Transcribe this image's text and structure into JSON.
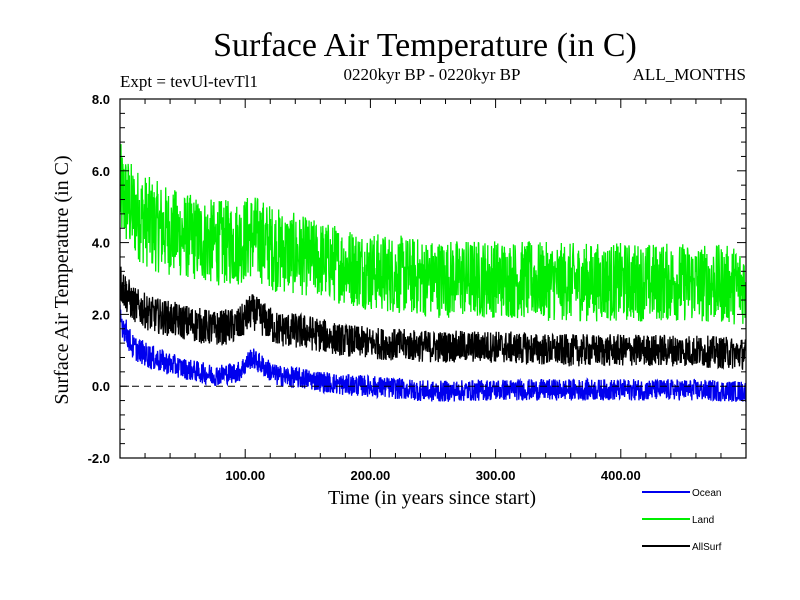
{
  "chart_data": {
    "type": "line",
    "title": "Surface Air Temperature (in C)",
    "expt_label": "Expt = tevUl-tevTl1",
    "period_label": "0220kyr BP - 0220kyr BP",
    "months_label": "ALL_MONTHS",
    "xlabel": "Time (in years since start)",
    "ylabel": "Surface Air Temperature (in C)",
    "xlim": [
      0,
      500
    ],
    "ylim": [
      -2.0,
      8.0
    ],
    "x_ticks": [
      {
        "value": 100,
        "label": "100.00"
      },
      {
        "value": 200,
        "label": "200.00"
      },
      {
        "value": 300,
        "label": "300.00"
      },
      {
        "value": 400,
        "label": "400.00"
      }
    ],
    "y_ticks": [
      {
        "value": -2.0,
        "label": "-2.0"
      },
      {
        "value": 0.0,
        "label": "0.0"
      },
      {
        "value": 2.0,
        "label": "2.0"
      },
      {
        "value": 4.0,
        "label": "4.0"
      },
      {
        "value": 6.0,
        "label": "6.0"
      },
      {
        "value": 8.0,
        "label": "8.0"
      }
    ],
    "reference_line": {
      "y": 0.0,
      "style": "dashed"
    },
    "x": [
      0,
      10,
      25,
      50,
      75,
      95,
      105,
      125,
      150,
      175,
      200,
      250,
      300,
      350,
      400,
      450,
      500
    ],
    "series": [
      {
        "name": "Land",
        "color": "#00ee00",
        "values": [
          5.4,
          4.9,
          4.5,
          4.2,
          4.0,
          4.0,
          4.2,
          3.8,
          3.6,
          3.4,
          3.2,
          3.0,
          3.0,
          2.9,
          2.9,
          2.9,
          2.8
        ],
        "spread": [
          1.4,
          1.3,
          1.3,
          1.2,
          1.2,
          1.2,
          1.2,
          1.2,
          1.1,
          1.1,
          1.1,
          1.1,
          1.1,
          1.1,
          1.1,
          1.1,
          1.1
        ]
      },
      {
        "name": "AllSurf",
        "color": "#000000",
        "values": [
          2.9,
          2.3,
          2.0,
          1.8,
          1.6,
          1.7,
          2.1,
          1.6,
          1.5,
          1.3,
          1.2,
          1.1,
          1.1,
          1.0,
          1.0,
          1.0,
          0.9
        ],
        "spread": [
          0.6,
          0.5,
          0.5,
          0.5,
          0.5,
          0.5,
          0.5,
          0.5,
          0.5,
          0.45,
          0.45,
          0.45,
          0.45,
          0.45,
          0.45,
          0.45,
          0.45
        ]
      },
      {
        "name": "Ocean",
        "color": "#0000ee",
        "values": [
          1.9,
          1.1,
          0.8,
          0.5,
          0.3,
          0.4,
          0.8,
          0.3,
          0.2,
          0.05,
          0.0,
          -0.15,
          -0.1,
          -0.1,
          -0.1,
          -0.1,
          -0.15
        ],
        "spread": [
          0.4,
          0.35,
          0.35,
          0.3,
          0.3,
          0.3,
          0.3,
          0.3,
          0.3,
          0.3,
          0.3,
          0.3,
          0.3,
          0.3,
          0.3,
          0.3,
          0.3
        ]
      }
    ],
    "legend": [
      {
        "name": "Ocean",
        "color": "#0000ee"
      },
      {
        "name": "Land",
        "color": "#00ee00"
      },
      {
        "name": "AllSurf",
        "color": "#000000"
      }
    ],
    "legend_position": "bottom-right"
  }
}
